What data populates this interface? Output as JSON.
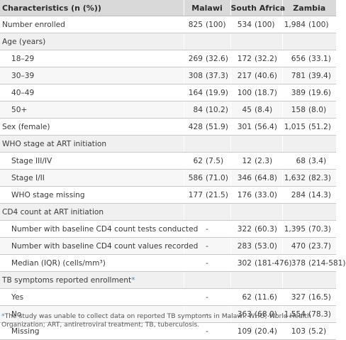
{
  "header": {
    "characteristics": "Characteristics (n (%))",
    "countries": [
      "Malawi",
      "South Africa",
      "Zambia"
    ]
  },
  "rows": [
    {
      "label": "Number enrolled",
      "section": false,
      "sub": false,
      "vals": [
        [
          "825",
          "(100)"
        ],
        [
          "534",
          "(100)"
        ],
        [
          "1,984",
          "(100)"
        ]
      ]
    },
    {
      "label": "Age (years)",
      "section": true,
      "sub": false,
      "vals": []
    },
    {
      "label": "18–29",
      "section": false,
      "sub": true,
      "vals": [
        [
          "269",
          "(32.6)"
        ],
        [
          "172",
          "(32.2)"
        ],
        [
          "656",
          "(33.1)"
        ]
      ]
    },
    {
      "label": "30–39",
      "section": false,
      "sub": true,
      "vals": [
        [
          "308",
          "(37.3)"
        ],
        [
          "217",
          "(40.6)"
        ],
        [
          "781",
          "(39.4)"
        ]
      ]
    },
    {
      "label": "40–49",
      "section": false,
      "sub": true,
      "vals": [
        [
          "164",
          "(19.9)"
        ],
        [
          "100",
          "(18.7)"
        ],
        [
          "389",
          "(19.6)"
        ]
      ]
    },
    {
      "label": "50+",
      "section": false,
      "sub": true,
      "vals": [
        [
          "84",
          "(10.2)"
        ],
        [
          "45",
          "(8.4)"
        ],
        [
          "158",
          "(8.0)"
        ]
      ]
    },
    {
      "label": "Sex (female)",
      "section": false,
      "sub": false,
      "vals": [
        [
          "428",
          "(51.9)"
        ],
        [
          "301",
          "(56.4)"
        ],
        [
          "1,015",
          "(51.2)"
        ]
      ]
    },
    {
      "label": "WHO stage at ART initiation",
      "section": true,
      "sub": false,
      "vals": []
    },
    {
      "label": "Stage III/IV",
      "section": false,
      "sub": true,
      "vals": [
        [
          "62",
          "(7.5)"
        ],
        [
          "12",
          "(2.3)"
        ],
        [
          "68",
          "(3.4)"
        ]
      ]
    },
    {
      "label": "Stage I/II",
      "section": false,
      "sub": true,
      "vals": [
        [
          "586",
          "(71.0)"
        ],
        [
          "346",
          "(64.8)"
        ],
        [
          "1,632",
          "(82.3)"
        ]
      ]
    },
    {
      "label": "WHO stage missing",
      "section": false,
      "sub": true,
      "vals": [
        [
          "177",
          "(21.5)"
        ],
        [
          "176",
          "(33.0)"
        ],
        [
          "284",
          "(14.3)"
        ]
      ]
    },
    {
      "label": "CD4 count at ART initiation",
      "section": true,
      "sub": false,
      "vals": []
    },
    {
      "label": "Number with baseline CD4 count tests conducted",
      "section": false,
      "sub": true,
      "vals": [
        [
          "-",
          ""
        ],
        [
          "322",
          "(60.3)"
        ],
        [
          "1,395",
          "(70.3)"
        ]
      ]
    },
    {
      "label": "Number with baseline CD4 count values recorded",
      "section": false,
      "sub": true,
      "vals": [
        [
          "-",
          ""
        ],
        [
          "283",
          "(53.0)"
        ],
        [
          "470",
          "(23.7)"
        ]
      ]
    },
    {
      "label": "Median (IQR) (cells/mm³)",
      "section": false,
      "sub": true,
      "vals": [
        [
          "-",
          ""
        ],
        [
          "302",
          "(181-476)"
        ],
        [
          "378",
          "(214-581)"
        ]
      ]
    },
    {
      "label": "TB symptoms reported enrollment",
      "asterisk": "*",
      "section": true,
      "sub": false,
      "vals": []
    },
    {
      "label": "Yes",
      "section": false,
      "sub": true,
      "vals": [
        [
          "-",
          ""
        ],
        [
          "62",
          "(11.6)"
        ],
        [
          "327",
          "(16.5)"
        ]
      ]
    },
    {
      "label": "No",
      "section": false,
      "sub": true,
      "vals": [
        [
          "-",
          ""
        ],
        [
          "363",
          "(68.0)"
        ],
        [
          "1,554",
          "(78.3)"
        ]
      ]
    },
    {
      "label": "Missing",
      "section": false,
      "sub": true,
      "vals": [
        [
          "-",
          ""
        ],
        [
          "109",
          "(20.4)"
        ],
        [
          "103",
          "(5.2)"
        ]
      ]
    }
  ],
  "footnote": {
    "marker": "*",
    "text": "The study was unable to collect data on reported TB symptoms in Malawi. WHO, World Health Organization; ART, antiretroviral treatment; TB, tuberculosis."
  }
}
